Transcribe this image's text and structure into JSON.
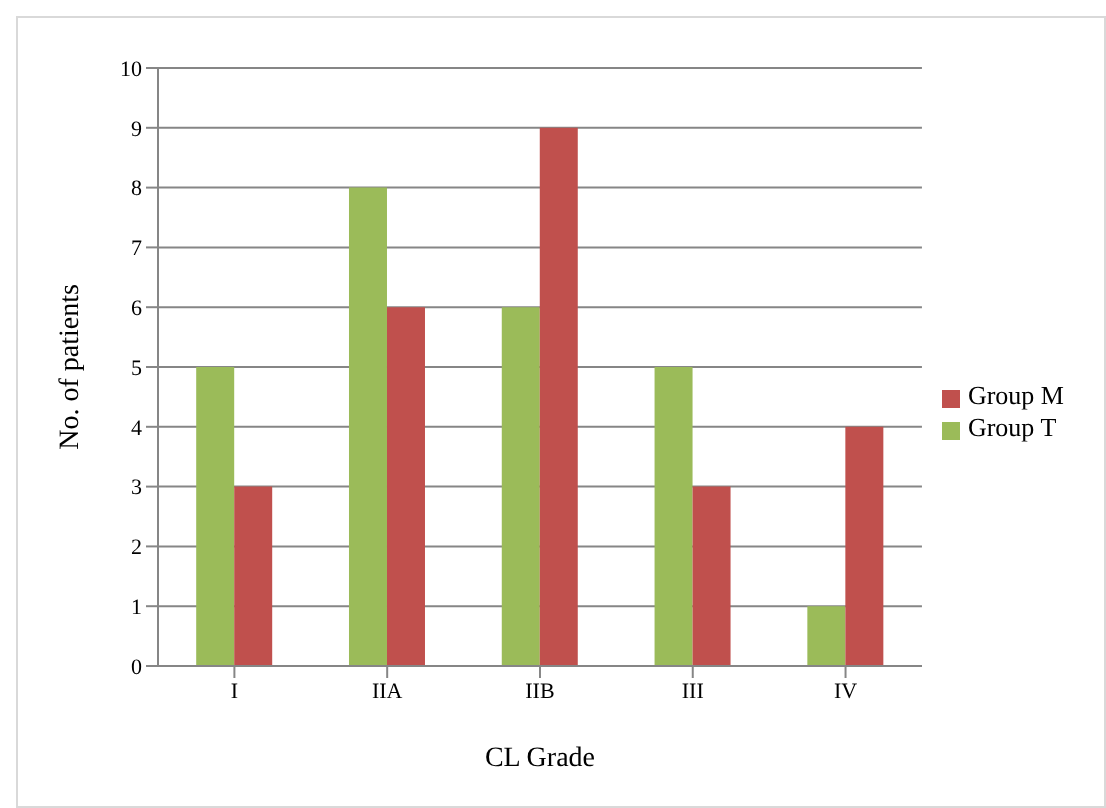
{
  "chart_data": {
    "type": "bar",
    "xlabel": "CL Grade",
    "ylabel": "No. of patients",
    "categories": [
      "I",
      "IIA",
      "IIB",
      "III",
      "IV"
    ],
    "series": [
      {
        "name": "Group T",
        "color": "#9bbb59",
        "values": [
          5,
          8,
          6,
          5,
          1
        ]
      },
      {
        "name": "Group M",
        "color": "#c0504d",
        "values": [
          3,
          6,
          9,
          3,
          4
        ]
      }
    ],
    "ylim": [
      0,
      10
    ],
    "yticks": [
      0,
      1,
      2,
      3,
      4,
      5,
      6,
      7,
      8,
      9,
      10
    ],
    "grid": "y",
    "legend": "right"
  }
}
